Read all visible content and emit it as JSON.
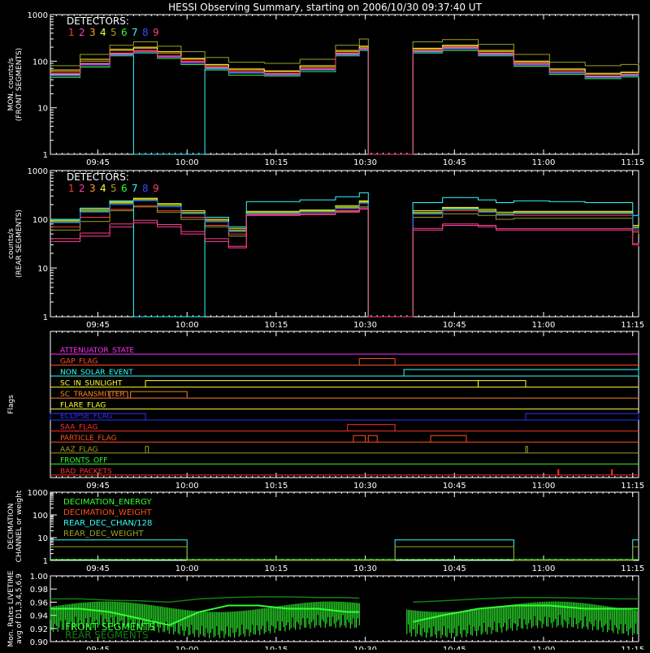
{
  "title": "HESSI Observing Summary, starting on 2006/10/30 09:37:40 UT",
  "colors": {
    "bg": "#000000",
    "axis": "#ffffff",
    "det": [
      "#ff3a3a",
      "#ff3fa0",
      "#ffa020",
      "#ffff30",
      "#a0a020",
      "#30ff30",
      "#30ffff",
      "#3050ff",
      "#ff4080"
    ]
  },
  "time_axis": {
    "range_min": [
      0,
      99
    ],
    "ticks": [
      {
        "t": 8,
        "label": "09:45"
      },
      {
        "t": 23,
        "label": "10:00"
      },
      {
        "t": 38,
        "label": "10:15"
      },
      {
        "t": 53,
        "label": "10:30"
      },
      {
        "t": 68,
        "label": "10:45"
      },
      {
        "t": 83,
        "label": "11:00"
      },
      {
        "t": 98,
        "label": "11:15"
      }
    ]
  },
  "chart_data": [
    {
      "id": "front",
      "type": "line",
      "ylabel": "MON. counts/s\n(FRONT SEGMENTS)",
      "yscale": "log",
      "ylim": [
        1,
        1000
      ],
      "yticks": [
        "1",
        "10",
        "100",
        "1000"
      ],
      "legend_title": "DETECTORS:",
      "legend_items": [
        "1",
        "2",
        "3",
        "4",
        "5",
        "6",
        "7",
        "8",
        "9"
      ],
      "x": [
        0,
        5,
        10,
        14,
        18,
        22,
        26,
        30,
        36,
        42,
        48,
        52,
        53.5,
        59,
        61,
        66,
        72,
        78,
        84,
        90,
        96,
        99
      ],
      "series": [
        {
          "name": "1",
          "values": [
            55,
            90,
            150,
            170,
            130,
            100,
            75,
            60,
            55,
            70,
            150,
            190,
            1,
            1,
            170,
            200,
            150,
            90,
            60,
            48,
            52,
            55
          ]
        },
        {
          "name": "2",
          "values": [
            50,
            85,
            140,
            160,
            125,
            95,
            72,
            58,
            52,
            66,
            140,
            180,
            1,
            1,
            160,
            190,
            140,
            85,
            58,
            46,
            50,
            52
          ]
        },
        {
          "name": "3",
          "values": [
            60,
            100,
            170,
            190,
            150,
            110,
            80,
            65,
            60,
            75,
            160,
            200,
            1,
            1,
            180,
            210,
            160,
            95,
            65,
            52,
            56,
            60
          ]
        },
        {
          "name": "4",
          "values": [
            65,
            110,
            180,
            200,
            160,
            115,
            85,
            68,
            62,
            80,
            170,
            210,
            1,
            1,
            190,
            220,
            170,
            100,
            68,
            55,
            58,
            62
          ]
        },
        {
          "name": "5",
          "values": [
            80,
            140,
            220,
            260,
            210,
            160,
            120,
            95,
            90,
            110,
            220,
            300,
            1,
            1,
            260,
            290,
            230,
            140,
            95,
            80,
            85,
            90
          ]
        },
        {
          "name": "6",
          "values": [
            45,
            75,
            130,
            150,
            115,
            85,
            65,
            50,
            48,
            60,
            130,
            170,
            1,
            1,
            150,
            170,
            130,
            78,
            52,
            42,
            46,
            48
          ]
        },
        {
          "name": "7",
          "values": [
            52,
            88,
            145,
            1,
            1,
            1,
            70,
            58,
            54,
            68,
            145,
            185,
            1,
            1,
            165,
            195,
            145,
            88,
            58,
            47,
            51,
            54
          ]
        },
        {
          "name": "8",
          "values": [
            48,
            80,
            135,
            155,
            120,
            90,
            68,
            55,
            50,
            64,
            135,
            175,
            1,
            1,
            155,
            180,
            135,
            82,
            55,
            44,
            48,
            50
          ]
        },
        {
          "name": "9",
          "values": [
            54,
            90,
            148,
            168,
            128,
            98,
            74,
            59,
            54,
            69,
            148,
            188,
            1,
            1,
            168,
            198,
            148,
            89,
            59,
            48,
            52,
            54
          ]
        }
      ]
    },
    {
      "id": "rear",
      "type": "line",
      "ylabel": "counts/s\n(REAR SEGMENTS)",
      "yscale": "log",
      "ylim": [
        1,
        1000
      ],
      "yticks": [
        "1",
        "10",
        "100",
        "1000"
      ],
      "legend_title": "DETECTORS:",
      "legend_items": [
        "1",
        "2",
        "3",
        "4",
        "5",
        "6",
        "7",
        "8",
        "9"
      ],
      "x": [
        0,
        5,
        10,
        14,
        18,
        22,
        26,
        30,
        33,
        36,
        42,
        48,
        52,
        53.5,
        59,
        61,
        66,
        72,
        75,
        78,
        84,
        90,
        96,
        98,
        99
      ],
      "series": [
        {
          "name": "1",
          "values": [
            70,
            110,
            160,
            190,
            150,
            110,
            75,
            50,
            130,
            130,
            140,
            170,
            220,
            1,
            1,
            130,
            150,
            140,
            120,
            120,
            120,
            120,
            120,
            60,
            55
          ]
        },
        {
          "name": "2",
          "values": [
            35,
            45,
            70,
            85,
            70,
            50,
            35,
            26,
            120,
            120,
            125,
            140,
            160,
            1,
            1,
            60,
            75,
            70,
            60,
            60,
            60,
            60,
            60,
            30,
            28
          ]
        },
        {
          "name": "3",
          "values": [
            90,
            150,
            220,
            260,
            200,
            140,
            95,
            60,
            140,
            140,
            150,
            180,
            230,
            1,
            1,
            140,
            170,
            150,
            130,
            140,
            140,
            140,
            140,
            70,
            65
          ]
        },
        {
          "name": "4",
          "values": [
            95,
            160,
            230,
            270,
            210,
            150,
            100,
            65,
            145,
            145,
            155,
            190,
            240,
            1,
            1,
            150,
            175,
            160,
            140,
            145,
            145,
            145,
            145,
            75,
            70
          ]
        },
        {
          "name": "5",
          "values": [
            60,
            90,
            150,
            180,
            140,
            100,
            70,
            45,
            125,
            125,
            130,
            150,
            180,
            1,
            1,
            110,
            130,
            120,
            100,
            105,
            105,
            105,
            105,
            55,
            50
          ]
        },
        {
          "name": "6",
          "values": [
            88,
            145,
            210,
            250,
            190,
            135,
            90,
            58,
            135,
            135,
            145,
            175,
            225,
            1,
            1,
            135,
            165,
            145,
            128,
            135,
            135,
            135,
            135,
            68,
            62
          ]
        },
        {
          "name": "7",
          "values": [
            100,
            170,
            240,
            1,
            1,
            1,
            110,
            70,
            230,
            230,
            250,
            290,
            350,
            1,
            1,
            220,
            280,
            250,
            220,
            240,
            230,
            220,
            220,
            120,
            110
          ]
        },
        {
          "name": "8",
          "values": [
            85,
            140,
            200,
            240,
            180,
            130,
            88,
            56,
            130,
            130,
            140,
            165,
            210,
            1,
            1,
            128,
            158,
            140,
            122,
            130,
            130,
            130,
            130,
            65,
            60
          ]
        },
        {
          "name": "9",
          "values": [
            40,
            52,
            80,
            95,
            78,
            56,
            40,
            28,
            125,
            125,
            130,
            145,
            170,
            1,
            1,
            65,
            80,
            75,
            64,
            64,
            64,
            64,
            64,
            32,
            30
          ]
        }
      ]
    },
    {
      "id": "flags",
      "type": "line",
      "ylabel": "Flags",
      "flags": [
        {
          "name": "ATTENUATOR_STATE",
          "color": "#ff30ff",
          "segs": []
        },
        {
          "name": "GAP_FLAG",
          "color": "#ff5020",
          "segs": [
            [
              52,
              58
            ]
          ]
        },
        {
          "name": "NON_SOLAR_EVENT",
          "color": "#30ffff",
          "segs": [
            [
              59.5,
              99
            ]
          ]
        },
        {
          "name": "SC_IN_SUNLIGHT",
          "color": "#ffff30",
          "segs": [
            [
              16,
              72
            ],
            [
              72,
              80
            ]
          ]
        },
        {
          "name": "SC_TRANSMITTER",
          "color": "#ff8020",
          "segs": [
            [
              10,
              13
            ],
            [
              13.5,
              23
            ]
          ]
        },
        {
          "name": "FLARE_FLAG",
          "color": "#ffff30",
          "segs": []
        },
        {
          "name": "ECLIPSE_FLAG",
          "color": "#3030ff",
          "segs": [
            [
              0,
              16
            ],
            [
              80,
              99
            ]
          ]
        },
        {
          "name": "SAA_FLAG",
          "color": "#ff3030",
          "segs": [
            [
              50,
              58
            ]
          ]
        },
        {
          "name": "PARTICLE_FLAG",
          "color": "#ff5020",
          "segs": [
            [
              51,
              53
            ],
            [
              53.5,
              55
            ],
            [
              64,
              70
            ]
          ]
        },
        {
          "name": "AAZ_FLAG",
          "color": "#a0a020",
          "segs": [
            [
              16,
              16.5
            ],
            [
              80,
              80.3
            ]
          ]
        },
        {
          "name": "FRONTS_OFF",
          "color": "#30ff30",
          "segs": []
        },
        {
          "name": "BAD_PACKETS",
          "color": "#ff3030",
          "spikes": [
            85.5,
            94.5
          ]
        }
      ]
    },
    {
      "id": "decimation",
      "type": "line",
      "ylabel": "DECIMATION\nCHANNEL or weight",
      "yscale": "log",
      "ylim": [
        1,
        1000
      ],
      "yticks": [
        "1",
        "10",
        "100",
        "1000"
      ],
      "legend_items": [
        {
          "name": "DECIMATION_ENERGY",
          "color": "#30ff30"
        },
        {
          "name": "DECIMATION_WEIGHT",
          "color": "#ff5020"
        },
        {
          "name": "REAR_DEC_CHAN/128",
          "color": "#30ffff"
        },
        {
          "name": "REAR_DEC_WEIGHT",
          "color": "#a0a020"
        }
      ],
      "x": [
        0,
        23,
        23,
        58,
        58,
        78,
        78,
        98,
        98,
        99
      ],
      "series": [
        {
          "name": "REAR_DEC_CHAN/128",
          "values": [
            8,
            8,
            1,
            1,
            8,
            8,
            1,
            1,
            8,
            8
          ]
        },
        {
          "name": "REAR_DEC_WEIGHT",
          "values": [
            4,
            4,
            1,
            1,
            4,
            4,
            1,
            1,
            4,
            4
          ]
        }
      ]
    },
    {
      "id": "livetime",
      "type": "line",
      "ylabel": "Mon. Rates LIVETIME\navg of D1,3,4,5,6,9",
      "ylim": [
        0.9,
        1.0
      ],
      "yticks": [
        "0.90",
        "0.92",
        "0.94",
        "0.96",
        "0.98",
        "1.00"
      ],
      "legend_items": [
        {
          "name": "FRONT SEGMENTS",
          "color": "#30ff30"
        },
        {
          "name": "REAR SEGMENTS",
          "color": "#108010"
        }
      ],
      "x": [
        0,
        5,
        10,
        15,
        20,
        25,
        30,
        35,
        40,
        45,
        50,
        52,
        53.5,
        59,
        61,
        66,
        72,
        78,
        84,
        90,
        96,
        99
      ],
      "series": [
        {
          "name": "FRONT SEGMENTS",
          "values": [
            0.95,
            0.95,
            0.945,
            0.935,
            0.925,
            0.945,
            0.955,
            0.955,
            0.95,
            0.95,
            0.945,
            0.945,
            null,
            null,
            0.93,
            0.94,
            0.95,
            0.955,
            0.955,
            0.95,
            0.95,
            0.95
          ]
        },
        {
          "name": "REAR SEGMENTS",
          "values": [
            0.965,
            0.965,
            0.963,
            0.962,
            0.96,
            0.965,
            0.967,
            0.968,
            0.968,
            0.967,
            0.967,
            0.966,
            null,
            null,
            0.96,
            0.962,
            0.965,
            0.967,
            0.967,
            0.966,
            0.965,
            0.965
          ]
        }
      ]
    }
  ]
}
